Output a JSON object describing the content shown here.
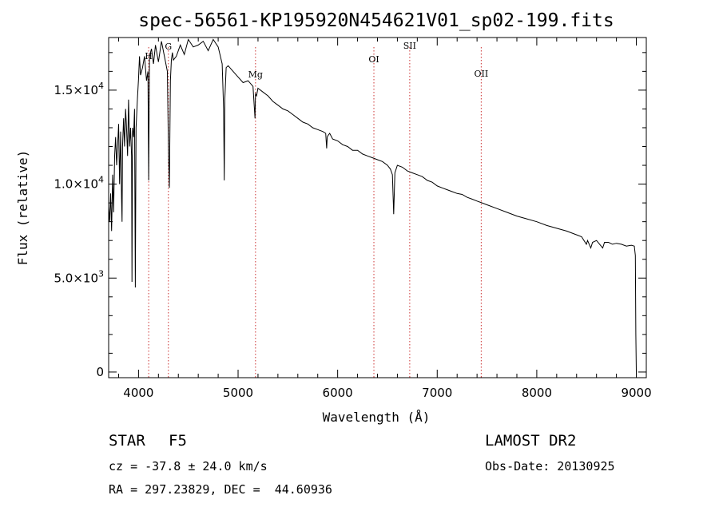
{
  "chart_data": {
    "type": "line",
    "title": "spec-56561-KP195920N454621V01_sp02-199.fits",
    "xlabel": "Wavelength (Å)",
    "ylabel": "Flux (relative)",
    "xlim": [
      3700,
      9100
    ],
    "ylim": [
      -300,
      17800
    ],
    "x_ticks": [
      4000,
      5000,
      6000,
      7000,
      8000,
      9000
    ],
    "y_ticks": [
      {
        "value": 0,
        "label": "0",
        "exp": ""
      },
      {
        "value": 5000,
        "label": "5.0×10",
        "exp": "3"
      },
      {
        "value": 10000,
        "label": "1.0×10",
        "exp": "4"
      },
      {
        "value": 15000,
        "label": "1.5×10",
        "exp": "4"
      }
    ],
    "line_markers": [
      {
        "label": "H",
        "wavelength": 4102
      },
      {
        "label": "G",
        "wavelength": 4300
      },
      {
        "label": "Mg",
        "wavelength": 5175
      },
      {
        "label": "OI",
        "wavelength": 6364
      },
      {
        "label": "SII",
        "wavelength": 6724
      },
      {
        "label": "OII",
        "wavelength": 7442
      }
    ],
    "series": [
      {
        "x": [
          3700,
          3710,
          3720,
          3730,
          3740,
          3750,
          3760,
          3770,
          3780,
          3790,
          3800,
          3810,
          3820,
          3830,
          3835,
          3840,
          3850,
          3860,
          3870,
          3880,
          3890,
          3900,
          3910,
          3920,
          3930,
          3934,
          3940,
          3950,
          3960,
          3968,
          3975,
          3990,
          4000,
          4010,
          4020,
          4040,
          4060,
          4080,
          4095,
          4102,
          4110,
          4130,
          4150,
          4170,
          4200,
          4230,
          4260,
          4290,
          4300,
          4310,
          4320,
          4330,
          4340,
          4350,
          4380,
          4420,
          4460,
          4500,
          4550,
          4600,
          4650,
          4700,
          4750,
          4800,
          4840,
          4855,
          4861,
          4867,
          4880,
          4900,
          4950,
          5000,
          5050,
          5100,
          5150,
          5170,
          5175,
          5185,
          5200,
          5250,
          5300,
          5350,
          5400,
          5450,
          5500,
          5550,
          5600,
          5650,
          5700,
          5750,
          5800,
          5850,
          5880,
          5890,
          5895,
          5905,
          5920,
          5950,
          6000,
          6050,
          6100,
          6150,
          6200,
          6250,
          6300,
          6350,
          6400,
          6450,
          6500,
          6530,
          6550,
          6563,
          6575,
          6600,
          6650,
          6700,
          6750,
          6800,
          6850,
          6900,
          6950,
          7000,
          7050,
          7100,
          7150,
          7200,
          7250,
          7300,
          7350,
          7400,
          7450,
          7500,
          7600,
          7700,
          7800,
          7900,
          8000,
          8100,
          8200,
          8300,
          8400,
          8450,
          8498,
          8510,
          8542,
          8560,
          8600,
          8662,
          8680,
          8720,
          8760,
          8800,
          8850,
          8900,
          8950,
          8980,
          8990,
          8995,
          9000
        ],
        "y": [
          8800,
          8000,
          9500,
          7500,
          10500,
          8500,
          11500,
          12500,
          11000,
          12000,
          13200,
          10000,
          12800,
          9200,
          8000,
          12000,
          13500,
          12000,
          14000,
          13000,
          11500,
          14500,
          12000,
          13000,
          11500,
          4800,
          13000,
          12500,
          14000,
          4500,
          13000,
          14600,
          15600,
          16800,
          15800,
          16200,
          16800,
          15500,
          16000,
          10200,
          16800,
          17200,
          16400,
          17400,
          16500,
          17600,
          16800,
          16000,
          12000,
          9800,
          15500,
          16600,
          17000,
          16600,
          16800,
          17400,
          16900,
          17700,
          17300,
          17400,
          17600,
          17100,
          17700,
          17300,
          16400,
          14000,
          10200,
          14500,
          16200,
          16300,
          16000,
          15700,
          15400,
          15500,
          15200,
          13500,
          14800,
          14700,
          15100,
          14900,
          14700,
          14400,
          14200,
          14000,
          13900,
          13700,
          13500,
          13300,
          13200,
          13000,
          12900,
          12800,
          12700,
          11900,
          12500,
          12600,
          12700,
          12400,
          12300,
          12100,
          12000,
          11800,
          11800,
          11600,
          11500,
          11400,
          11300,
          11200,
          11000,
          10800,
          10500,
          8400,
          10600,
          11000,
          10900,
          10700,
          10600,
          10500,
          10400,
          10200,
          10100,
          9900,
          9800,
          9700,
          9600,
          9500,
          9450,
          9300,
          9200,
          9100,
          9000,
          8900,
          8700,
          8500,
          8300,
          8150,
          8000,
          7800,
          7650,
          7500,
          7300,
          7200,
          6800,
          7000,
          6600,
          6900,
          7000,
          6600,
          6900,
          6900,
          6800,
          6850,
          6800,
          6700,
          6750,
          6700,
          6200,
          2000,
          0
        ]
      }
    ]
  },
  "info": {
    "object_class": "STAR",
    "subclass": "F5",
    "redshift": "cz = -37.8 ± 24.0 km/s",
    "coords": "RA = 297.23829, DEC =  44.60936",
    "survey": "LAMOST DR2",
    "obs_date": "Obs-Date: 20130925"
  }
}
